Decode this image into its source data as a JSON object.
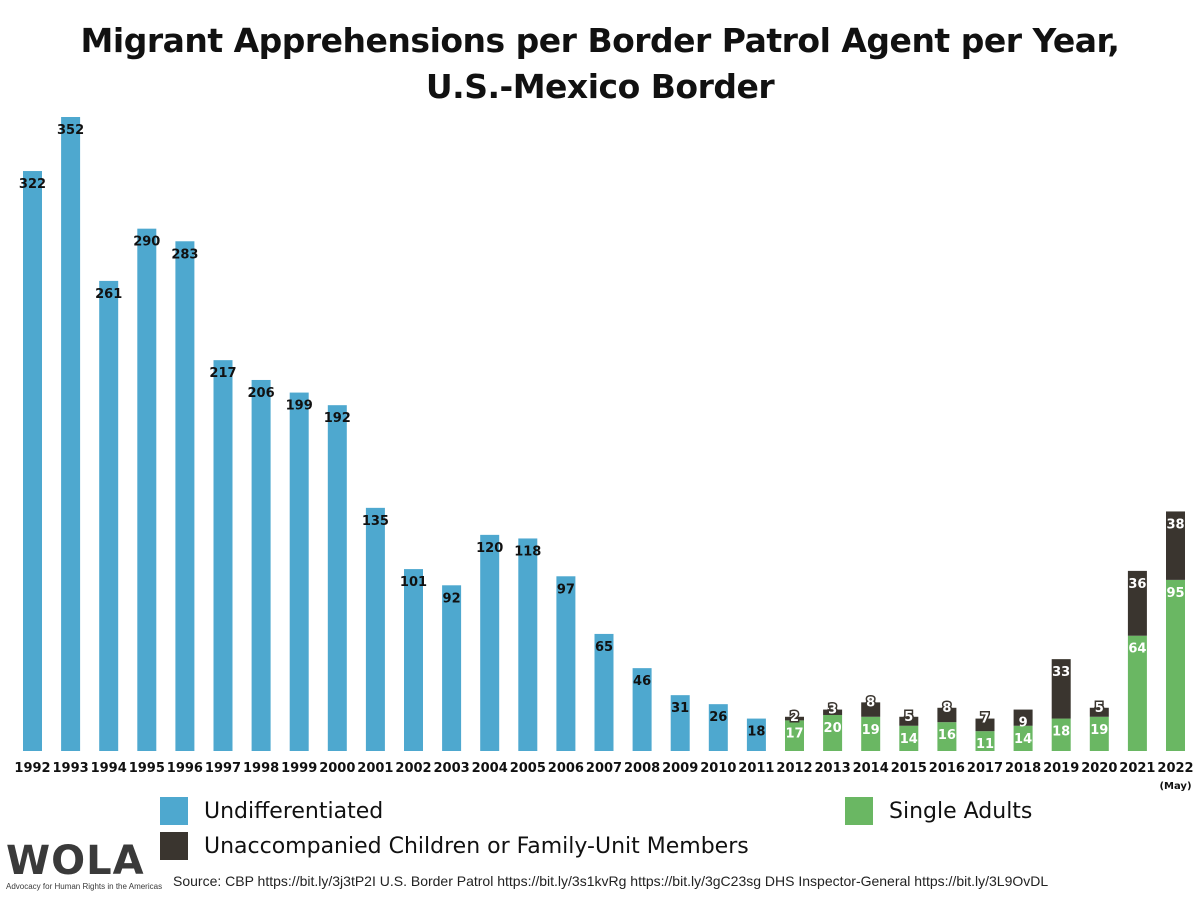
{
  "chart_data": {
    "type": "bar",
    "stacked": true,
    "title": "Migrant Apprehensions per Border Patrol Agent per Year,",
    "subtitle": "U.S.-Mexico Border",
    "categories": [
      "1992",
      "1993",
      "1994",
      "1995",
      "1996",
      "1997",
      "1998",
      "1999",
      "2000",
      "2001",
      "2002",
      "2003",
      "2004",
      "2005",
      "2006",
      "2007",
      "2008",
      "2009",
      "2010",
      "2011",
      "2012",
      "2013",
      "2014",
      "2015",
      "2016",
      "2017",
      "2018",
      "2019",
      "2020",
      "2021",
      "2022"
    ],
    "category_notes": {
      "2022": "(May)"
    },
    "ylim": [
      0,
      352
    ],
    "grid": false,
    "legend_position": "bottom",
    "series": [
      {
        "name": "Undifferentiated",
        "color": "#4ea8cf",
        "values": [
          322,
          352,
          261,
          290,
          283,
          217,
          206,
          199,
          192,
          135,
          101,
          92,
          120,
          118,
          97,
          65,
          46,
          31,
          26,
          18,
          null,
          null,
          null,
          null,
          null,
          null,
          null,
          null,
          null,
          null,
          null
        ]
      },
      {
        "name": "Single Adults",
        "color": "#6ab763",
        "values": [
          null,
          null,
          null,
          null,
          null,
          null,
          null,
          null,
          null,
          null,
          null,
          null,
          null,
          null,
          null,
          null,
          null,
          null,
          null,
          null,
          17,
          20,
          19,
          14,
          16,
          11,
          14,
          18,
          19,
          64,
          95
        ]
      },
      {
        "name": "Unaccompanied Children or Family-Unit Members",
        "color": "#3a352f",
        "values": [
          null,
          null,
          null,
          null,
          null,
          null,
          null,
          null,
          null,
          null,
          null,
          null,
          null,
          null,
          null,
          null,
          null,
          null,
          null,
          null,
          2,
          3,
          8,
          5,
          8,
          7,
          9,
          33,
          5,
          36,
          38
        ]
      }
    ]
  },
  "legend": {
    "undifferentiated": "Undifferentiated",
    "single_adults": "Single Adults",
    "families": "Unaccompanied Children or Family-Unit Members"
  },
  "logo": {
    "text": "WOLA",
    "tagline": "Advocacy for Human Rights in the Americas"
  },
  "source": "Source: CBP https://bit.ly/3j3tP2I U.S. Border Patrol https://bit.ly/3s1kvRg https://bit.ly/3gC23sg DHS Inspector-General https://bit.ly/3L9OvDL"
}
